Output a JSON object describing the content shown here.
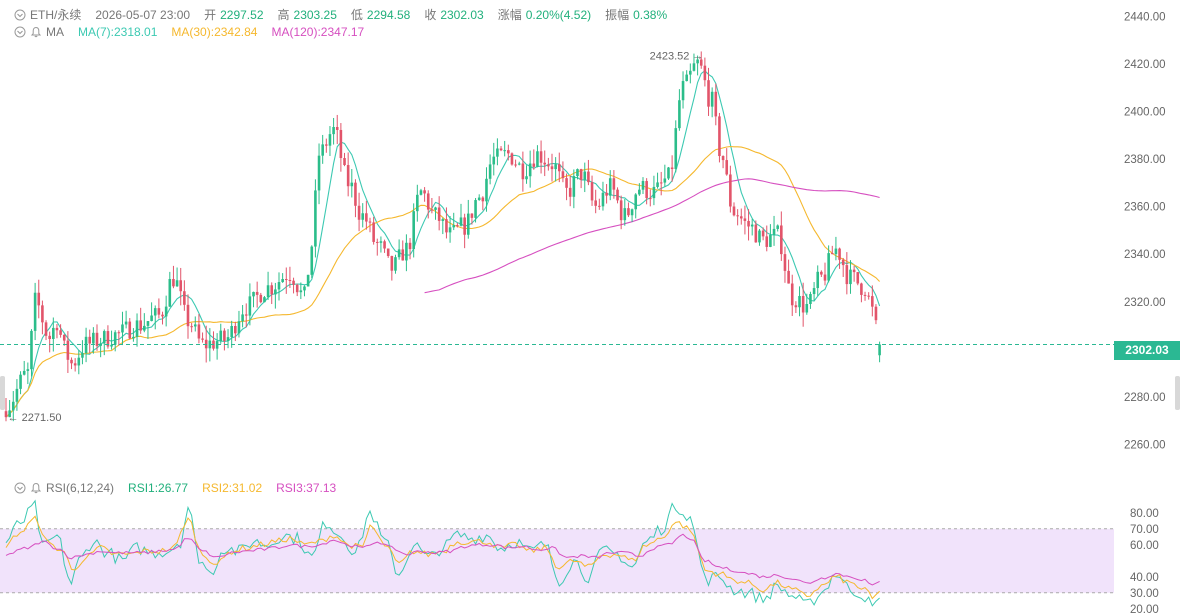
{
  "header": {
    "symbol": "ETH/永续",
    "datetime": "2026-05-07 23:00",
    "open_label": "开",
    "open": "2297.52",
    "high_label": "高",
    "high": "2303.25",
    "low_label": "低",
    "low": "2294.58",
    "close_label": "收",
    "close": "2302.03",
    "change_label": "涨幅",
    "change": "0.20%(4.52)",
    "amplitude_label": "振幅",
    "amplitude": "0.38%"
  },
  "ma_legend": {
    "label": "MA",
    "ma7": "MA(7):2318.01",
    "ma30": "MA(30):2342.84",
    "ma120": "MA(120):2347.17"
  },
  "rsi_legend": {
    "label": "RSI(6,12,24)",
    "rsi1": "RSI1:26.77",
    "rsi2": "RSI2:31.02",
    "rsi3": "RSI3:37.13"
  },
  "current_price": "2302.03",
  "high_marker": "2423.52",
  "low_marker": "2271.50",
  "colors": {
    "up": "#2bbd8a",
    "down": "#e2546a",
    "ma7": "#3cc9b2",
    "ma30": "#f5b82e",
    "ma120": "#d64fc0",
    "rsi1": "#3cc9b2",
    "rsi2": "#f5b82e",
    "rsi3": "#d64fc0",
    "rsi_band": "#f1e3fb"
  },
  "chart_data": [
    {
      "type": "candlestick",
      "y_ticks": [
        "2440.00",
        "2420.00",
        "2400.00",
        "2380.00",
        "2360.00",
        "2340.00",
        "2320.00",
        "2300.00",
        "2280.00",
        "2260.00"
      ],
      "ylim": [
        2256,
        2441
      ],
      "high": 2423.52,
      "low": 2271.5,
      "last": 2302.03,
      "anchors": [
        [
          0,
          2276
        ],
        [
          6,
          2290
        ],
        [
          8,
          2320
        ],
        [
          12,
          2305
        ],
        [
          14,
          2312
        ],
        [
          16,
          2300
        ],
        [
          18,
          2294
        ],
        [
          22,
          2302
        ],
        [
          26,
          2304
        ],
        [
          30,
          2306
        ],
        [
          36,
          2310
        ],
        [
          42,
          2314
        ],
        [
          46,
          2330
        ],
        [
          50,
          2312
        ],
        [
          54,
          2302
        ],
        [
          60,
          2304
        ],
        [
          66,
          2318
        ],
        [
          72,
          2326
        ],
        [
          78,
          2332
        ],
        [
          82,
          2322
        ],
        [
          84,
          2344
        ],
        [
          86,
          2382
        ],
        [
          90,
          2392
        ],
        [
          94,
          2370
        ],
        [
          98,
          2356
        ],
        [
          102,
          2344
        ],
        [
          106,
          2334
        ],
        [
          110,
          2342
        ],
        [
          114,
          2366
        ],
        [
          118,
          2356
        ],
        [
          122,
          2348
        ],
        [
          126,
          2352
        ],
        [
          130,
          2364
        ],
        [
          134,
          2380
        ],
        [
          138,
          2382
        ],
        [
          142,
          2376
        ],
        [
          146,
          2382
        ],
        [
          150,
          2378
        ],
        [
          154,
          2366
        ],
        [
          158,
          2374
        ],
        [
          162,
          2360
        ],
        [
          166,
          2368
        ],
        [
          170,
          2356
        ],
        [
          174,
          2368
        ],
        [
          178,
          2366
        ],
        [
          182,
          2372
        ],
        [
          186,
          2410
        ],
        [
          190,
          2420
        ],
        [
          194,
          2404
        ],
        [
          196,
          2384
        ],
        [
          200,
          2358
        ],
        [
          204,
          2352
        ],
        [
          208,
          2346
        ],
        [
          212,
          2348
        ],
        [
          216,
          2322
        ],
        [
          220,
          2318
        ],
        [
          224,
          2330
        ],
        [
          228,
          2342
        ],
        [
          232,
          2330
        ],
        [
          236,
          2326
        ],
        [
          238,
          2316
        ],
        [
          240,
          2302
        ]
      ]
    },
    {
      "type": "line",
      "name": "RSI",
      "y_ticks": [
        "80.00",
        "70.00",
        "60.00",
        "40.00",
        "30.00",
        "20.00"
      ],
      "band": [
        30,
        70
      ],
      "ylim": [
        18,
        88
      ],
      "series": [
        {
          "name": "RSI1",
          "last": 26.77,
          "anchors": [
            [
              0,
              62
            ],
            [
              4,
              74
            ],
            [
              8,
              84
            ],
            [
              10,
              58
            ],
            [
              14,
              65
            ],
            [
              18,
              36
            ],
            [
              20,
              50
            ],
            [
              24,
              62
            ],
            [
              28,
              55
            ],
            [
              32,
              50
            ],
            [
              36,
              58
            ],
            [
              40,
              55
            ],
            [
              44,
              56
            ],
            [
              48,
              62
            ],
            [
              50,
              84
            ],
            [
              53,
              52
            ],
            [
              56,
              42
            ],
            [
              60,
              58
            ],
            [
              64,
              56
            ],
            [
              68,
              62
            ],
            [
              72,
              60
            ],
            [
              76,
              66
            ],
            [
              80,
              64
            ],
            [
              84,
              52
            ],
            [
              88,
              74
            ],
            [
              92,
              66
            ],
            [
              96,
              55
            ],
            [
              100,
              80
            ],
            [
              104,
              62
            ],
            [
              108,
              42
            ],
            [
              112,
              60
            ],
            [
              116,
              52
            ],
            [
              120,
              58
            ],
            [
              124,
              66
            ],
            [
              128,
              64
            ],
            [
              132,
              66
            ],
            [
              136,
              58
            ],
            [
              140,
              62
            ],
            [
              144,
              56
            ],
            [
              148,
              60
            ],
            [
              152,
              38
            ],
            [
              156,
              50
            ],
            [
              160,
              40
            ],
            [
              164,
              56
            ],
            [
              168,
              54
            ],
            [
              172,
              46
            ],
            [
              176,
              62
            ],
            [
              180,
              70
            ],
            [
              184,
              84
            ],
            [
              188,
              78
            ],
            [
              190,
              58
            ],
            [
              192,
              38
            ],
            [
              196,
              40
            ],
            [
              200,
              32
            ],
            [
              204,
              30
            ],
            [
              208,
              26
            ],
            [
              212,
              34
            ],
            [
              216,
              28
            ],
            [
              220,
              22
            ],
            [
              224,
              30
            ],
            [
              228,
              42
            ],
            [
              232,
              32
            ],
            [
              236,
              28
            ],
            [
              238,
              20
            ],
            [
              240,
              27
            ]
          ]
        },
        {
          "name": "RSI2",
          "last": 31.02,
          "anchors": [
            [
              0,
              60
            ],
            [
              4,
              68
            ],
            [
              8,
              76
            ],
            [
              12,
              60
            ],
            [
              16,
              56
            ],
            [
              18,
              44
            ],
            [
              22,
              52
            ],
            [
              26,
              58
            ],
            [
              30,
              54
            ],
            [
              34,
              54
            ],
            [
              38,
              56
            ],
            [
              42,
              56
            ],
            [
              46,
              58
            ],
            [
              50,
              76
            ],
            [
              54,
              54
            ],
            [
              58,
              48
            ],
            [
              62,
              56
            ],
            [
              66,
              58
            ],
            [
              70,
              60
            ],
            [
              74,
              62
            ],
            [
              78,
              64
            ],
            [
              82,
              60
            ],
            [
              86,
              62
            ],
            [
              90,
              66
            ],
            [
              94,
              60
            ],
            [
              98,
              58
            ],
            [
              100,
              72
            ],
            [
              104,
              60
            ],
            [
              108,
              48
            ],
            [
              112,
              56
            ],
            [
              116,
              54
            ],
            [
              120,
              56
            ],
            [
              124,
              62
            ],
            [
              128,
              62
            ],
            [
              132,
              62
            ],
            [
              136,
              58
            ],
            [
              140,
              60
            ],
            [
              144,
              56
            ],
            [
              148,
              58
            ],
            [
              152,
              46
            ],
            [
              156,
              50
            ],
            [
              160,
              46
            ],
            [
              164,
              54
            ],
            [
              168,
              54
            ],
            [
              172,
              50
            ],
            [
              176,
              60
            ],
            [
              180,
              64
            ],
            [
              184,
              74
            ],
            [
              188,
              70
            ],
            [
              190,
              58
            ],
            [
              192,
              44
            ],
            [
              196,
              42
            ],
            [
              200,
              38
            ],
            [
              204,
              36
            ],
            [
              208,
              32
            ],
            [
              212,
              36
            ],
            [
              216,
              32
            ],
            [
              220,
              28
            ],
            [
              224,
              34
            ],
            [
              228,
              40
            ],
            [
              232,
              36
            ],
            [
              236,
              32
            ],
            [
              238,
              26
            ],
            [
              240,
              31
            ]
          ]
        },
        {
          "name": "RSI3",
          "last": 37.13,
          "anchors": [
            [
              0,
              54
            ],
            [
              6,
              58
            ],
            [
              10,
              62
            ],
            [
              14,
              58
            ],
            [
              18,
              52
            ],
            [
              22,
              54
            ],
            [
              26,
              56
            ],
            [
              30,
              55
            ],
            [
              34,
              55
            ],
            [
              38,
              55
            ],
            [
              42,
              56
            ],
            [
              46,
              57
            ],
            [
              50,
              64
            ],
            [
              54,
              56
            ],
            [
              58,
              52
            ],
            [
              62,
              55
            ],
            [
              66,
              56
            ],
            [
              70,
              57
            ],
            [
              74,
              58
            ],
            [
              78,
              60
            ],
            [
              82,
              59
            ],
            [
              86,
              60
            ],
            [
              90,
              63
            ],
            [
              94,
              60
            ],
            [
              98,
              58
            ],
            [
              102,
              62
            ],
            [
              106,
              58
            ],
            [
              110,
              54
            ],
            [
              114,
              56
            ],
            [
              118,
              55
            ],
            [
              122,
              56
            ],
            [
              126,
              59
            ],
            [
              130,
              60
            ],
            [
              134,
              60
            ],
            [
              138,
              58
            ],
            [
              142,
              59
            ],
            [
              146,
              57
            ],
            [
              150,
              58
            ],
            [
              154,
              52
            ],
            [
              158,
              53
            ],
            [
              162,
              52
            ],
            [
              166,
              55
            ],
            [
              170,
              55
            ],
            [
              174,
              53
            ],
            [
              178,
              58
            ],
            [
              182,
              60
            ],
            [
              186,
              66
            ],
            [
              188,
              64
            ],
            [
              192,
              50
            ],
            [
              196,
              46
            ],
            [
              200,
              44
            ],
            [
              204,
              42
            ],
            [
              208,
              40
            ],
            [
              212,
              41
            ],
            [
              216,
              39
            ],
            [
              220,
              36
            ],
            [
              224,
              39
            ],
            [
              228,
              42
            ],
            [
              232,
              40
            ],
            [
              236,
              38
            ],
            [
              238,
              34
            ],
            [
              240,
              37
            ]
          ]
        }
      ]
    }
  ]
}
